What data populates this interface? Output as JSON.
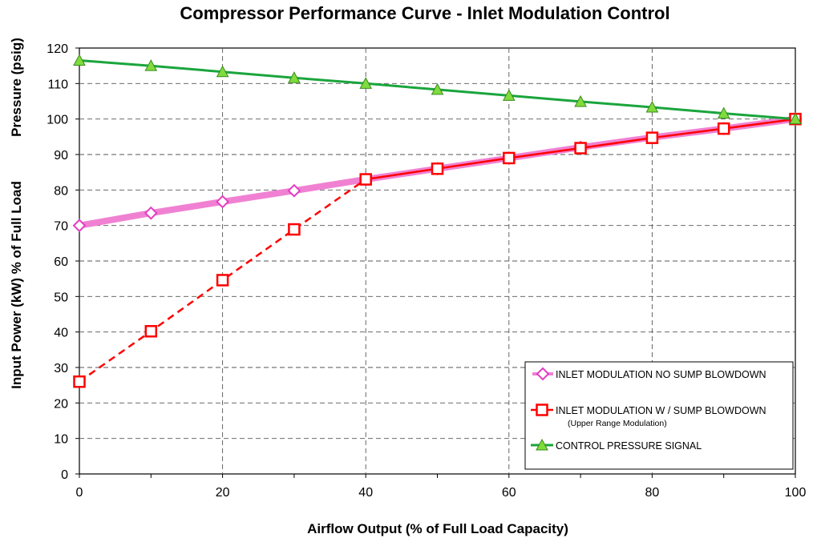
{
  "chart_data": {
    "type": "line",
    "title": "Compressor Performance Curve - Inlet Modulation Control",
    "xlabel": "Airflow  Output (% of Full Load Capacity)",
    "ylabel_upper": "Pressure (psig)",
    "ylabel_lower": "Input Power (kW) % of Full Load",
    "xlim": [
      0,
      100
    ],
    "ylim": [
      0,
      120
    ],
    "xticks": [
      0,
      20,
      40,
      60,
      80,
      100
    ],
    "yticks": [
      0,
      10,
      20,
      30,
      40,
      50,
      60,
      70,
      80,
      90,
      100,
      110,
      120
    ],
    "grid": true,
    "legend_position": "bottom-right",
    "series": [
      {
        "name": "INLET MODULATION NO SUMP BLOWDOWN",
        "color": "#f081d2",
        "marker": "diamond",
        "x": [
          0,
          10,
          20,
          30,
          40,
          50,
          60,
          70,
          80,
          90,
          100
        ],
        "y": [
          70,
          73.5,
          76.7,
          79.8,
          83,
          86,
          89,
          92,
          94.8,
          97.3,
          100
        ]
      },
      {
        "name": "INLET MODULATION W / SUMP BLOWDOWN",
        "subtitle": "(Upper Range Modulation)",
        "color": "#ff0000",
        "marker": "square",
        "dashed_until_x": 40,
        "x": [
          0,
          10,
          20,
          30,
          40,
          50,
          60,
          70,
          80,
          90,
          100
        ],
        "y": [
          26,
          40.2,
          54.6,
          68.9,
          83,
          86,
          89,
          91.8,
          94.7,
          97.3,
          100
        ]
      },
      {
        "name": "CONTROL PRESSURE SIGNAL",
        "color": "#1aa53c",
        "marker_color": "#7fdc3c",
        "marker": "triangle",
        "x": [
          0,
          10,
          20,
          30,
          40,
          50,
          60,
          70,
          80,
          90,
          100
        ],
        "y": [
          116.5,
          115,
          113.3,
          111.6,
          110,
          108.3,
          106.6,
          104.9,
          103.3,
          101.6,
          100
        ]
      }
    ]
  }
}
